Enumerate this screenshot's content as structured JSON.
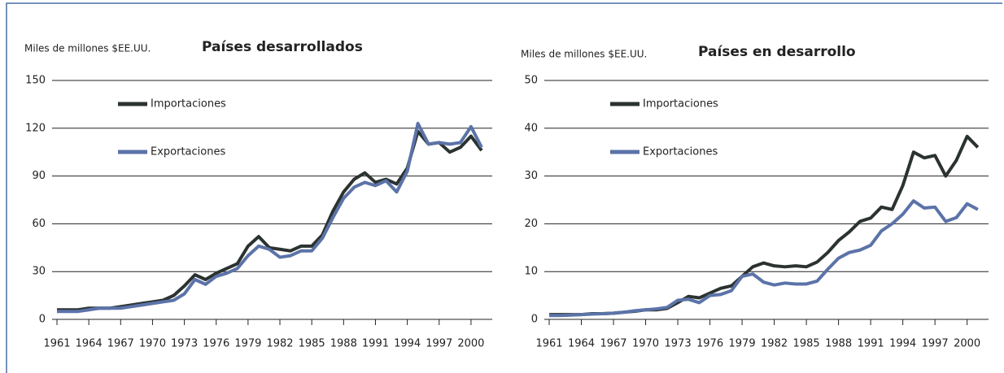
{
  "chart_data": [
    {
      "type": "line",
      "title": "Países desarrollados",
      "y_label": "Miles de millones $EE.UU.",
      "x": [
        1961,
        1962,
        1963,
        1964,
        1965,
        1966,
        1967,
        1968,
        1969,
        1970,
        1971,
        1972,
        1973,
        1974,
        1975,
        1976,
        1977,
        1978,
        1979,
        1980,
        1981,
        1982,
        1983,
        1984,
        1985,
        1986,
        1987,
        1988,
        1989,
        1990,
        1991,
        1992,
        1993,
        1994,
        1995,
        1996,
        1997,
        1998,
        1999,
        2000,
        2001
      ],
      "series": [
        {
          "name": "Importaciones",
          "color": "#2b3331",
          "values": [
            6,
            6,
            6,
            7,
            7,
            7,
            8,
            9,
            10,
            11,
            12,
            15,
            21,
            28,
            25,
            29,
            32,
            35,
            46,
            52,
            45,
            44,
            43,
            46,
            46,
            53,
            68,
            80,
            88,
            92,
            86,
            88,
            85,
            95,
            118,
            110,
            111,
            105,
            108,
            115,
            106
          ]
        },
        {
          "name": "Exportaciones",
          "color": "#5b73a8",
          "values": [
            5,
            5,
            5,
            6,
            7,
            7,
            7,
            8,
            9,
            10,
            11,
            12,
            16,
            25,
            22,
            27,
            29,
            32,
            40,
            46,
            44,
            39,
            40,
            43,
            43,
            51,
            64,
            76,
            83,
            86,
            84,
            87,
            80,
            93,
            123,
            110,
            111,
            110,
            111,
            121,
            108
          ]
        }
      ],
      "xlim": [
        1961,
        2002
      ],
      "xticks": [
        1961,
        1964,
        1967,
        1970,
        1973,
        1976,
        1979,
        1982,
        1985,
        1988,
        1991,
        1994,
        1997,
        2000
      ],
      "ylim": [
        0,
        150
      ],
      "yticks": [
        0,
        30,
        60,
        90,
        120,
        150
      ],
      "grid": true
    },
    {
      "type": "line",
      "title": "Países en desarrollo",
      "y_label": "Miles de millones $EE.UU.",
      "x": [
        1961,
        1962,
        1963,
        1964,
        1965,
        1966,
        1967,
        1968,
        1969,
        1970,
        1971,
        1972,
        1973,
        1974,
        1975,
        1976,
        1977,
        1978,
        1979,
        1980,
        1981,
        1982,
        1983,
        1984,
        1985,
        1986,
        1987,
        1988,
        1989,
        1990,
        1991,
        1992,
        1993,
        1994,
        1995,
        1996,
        1997,
        1998,
        1999,
        2000,
        2001
      ],
      "series": [
        {
          "name": "Importaciones",
          "color": "#2b3331",
          "values": [
            1,
            1,
            1,
            1,
            1.2,
            1.2,
            1.3,
            1.5,
            1.7,
            2,
            2,
            2.3,
            3.5,
            4.8,
            4.5,
            5.5,
            6.5,
            7,
            9,
            11,
            11.8,
            11.2,
            11,
            11.2,
            11,
            12,
            14,
            16.5,
            18.3,
            20.5,
            21.2,
            23.5,
            23,
            28,
            35,
            33.8,
            34.3,
            30,
            33.3,
            38.3,
            36
          ]
        },
        {
          "name": "Exportaciones",
          "color": "#5b73a8",
          "values": [
            0.8,
            0.8,
            0.9,
            1,
            1.1,
            1.2,
            1.3,
            1.5,
            1.8,
            2,
            2.2,
            2.5,
            4,
            4.2,
            3.5,
            5,
            5.2,
            6,
            9,
            9.5,
            7.8,
            7.2,
            7.6,
            7.4,
            7.4,
            8,
            10.5,
            12.8,
            14,
            14.5,
            15.5,
            18.5,
            20,
            22,
            24.8,
            23.3,
            23.5,
            20.5,
            21.3,
            24.2,
            23
          ]
        }
      ],
      "xlim": [
        1961,
        2002
      ],
      "xticks": [
        1961,
        1964,
        1967,
        1970,
        1973,
        1976,
        1979,
        1982,
        1985,
        1988,
        1991,
        1994,
        1997,
        2000
      ],
      "ylim": [
        0,
        50
      ],
      "yticks": [
        0,
        10,
        20,
        30,
        40,
        50
      ],
      "grid": true
    }
  ]
}
